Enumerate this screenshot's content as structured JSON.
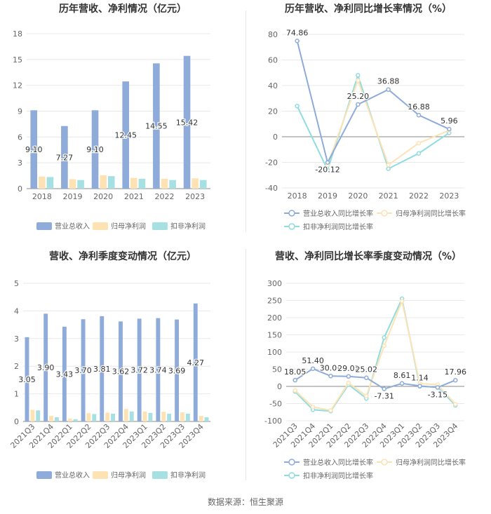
{
  "source": "数据来源：恒生聚源",
  "colors": {
    "revenue": "#8eabd9",
    "parent_profit": "#fde3b4",
    "deducted_profit": "#a6e0e2",
    "revenue_line": "#8eabd9",
    "parent_line": "#fde3b4",
    "deducted_line": "#90dcdf",
    "grid": "#e8e8e8",
    "axis": "#888888",
    "text": "#666666",
    "title": "#333333",
    "label": "#333333"
  },
  "chart_data": [
    {
      "id": "annual_amount",
      "type": "bar",
      "title": "历年营收、净利情况（亿元）",
      "categories": [
        "2018",
        "2019",
        "2020",
        "2021",
        "2022",
        "2023"
      ],
      "ylim": [
        0,
        18
      ],
      "yticks": [
        0,
        3,
        6,
        9,
        12,
        15,
        18
      ],
      "series": [
        {
          "name": "营业总收入",
          "values": [
            9.1,
            7.27,
            9.1,
            12.45,
            14.55,
            15.42
          ],
          "labels": [
            "9.10",
            "7.27",
            "9.10",
            "12.45",
            "14.55",
            "15.42"
          ]
        },
        {
          "name": "归母净利润",
          "values": [
            1.4,
            1.1,
            1.55,
            1.25,
            1.15,
            1.2
          ]
        },
        {
          "name": "扣非净利润",
          "values": [
            1.35,
            1.0,
            1.45,
            1.15,
            1.0,
            1.0
          ]
        }
      ]
    },
    {
      "id": "annual_growth",
      "type": "line",
      "title": "历年营收、净利同比增长率情况（%）",
      "categories": [
        "2018",
        "2019",
        "2020",
        "2021",
        "2022",
        "2023"
      ],
      "ylim": [
        -40,
        80
      ],
      "yticks": [
        -40,
        -20,
        0,
        20,
        40,
        60,
        80
      ],
      "series": [
        {
          "name": "营业总收入同比增长率",
          "values": [
            74.86,
            -20.12,
            25.2,
            36.88,
            16.88,
            5.96
          ],
          "labels": [
            "74.86",
            "-20.12",
            "25.20",
            "36.88",
            "16.88",
            "5.96"
          ]
        },
        {
          "name": "归母净利润同比增长率",
          "values": [
            null,
            -22,
            44,
            -22,
            -5,
            5
          ]
        },
        {
          "name": "扣非净利润同比增长率",
          "values": [
            24,
            -26,
            48,
            -25,
            -13,
            3
          ]
        }
      ]
    },
    {
      "id": "quarterly_amount",
      "type": "bar",
      "title": "营收、净利季度变动情况（亿元）",
      "categories": [
        "2021Q3",
        "2021Q4",
        "2022Q1",
        "2022Q2",
        "2022Q3",
        "2022Q4",
        "2023Q1",
        "2023Q2",
        "2023Q3",
        "2023Q4"
      ],
      "ylim": [
        0,
        5
      ],
      "yticks": [
        0,
        1,
        2,
        3,
        4,
        5
      ],
      "series": [
        {
          "name": "营业总收入",
          "values": [
            3.05,
            3.9,
            3.43,
            3.7,
            3.81,
            3.62,
            3.72,
            3.74,
            3.69,
            4.27
          ],
          "labels": [
            "3.05",
            "3.90",
            "3.43",
            "3.70",
            "3.81",
            "3.62",
            "3.72",
            "3.74",
            "3.69",
            "4.27"
          ]
        },
        {
          "name": "归母净利润",
          "values": [
            0.42,
            0.2,
            0.1,
            0.3,
            0.32,
            0.45,
            0.36,
            0.35,
            0.33,
            0.2
          ]
        },
        {
          "name": "扣非净利润",
          "values": [
            0.4,
            0.15,
            0.08,
            0.27,
            0.28,
            0.36,
            0.31,
            0.28,
            0.28,
            0.15
          ]
        }
      ]
    },
    {
      "id": "quarterly_growth",
      "type": "line",
      "title": "营收、净利同比增长率季度变动情况（%）",
      "categories": [
        "2021Q3",
        "2021Q4",
        "2022Q1",
        "2022Q2",
        "2022Q3",
        "2022Q4",
        "2023Q1",
        "2023Q2",
        "2023Q3",
        "2023Q4"
      ],
      "ylim": [
        -100,
        300
      ],
      "yticks": [
        -100,
        -50,
        0,
        50,
        100,
        150,
        200,
        250,
        300
      ],
      "series": [
        {
          "name": "营业总收入同比增长率",
          "values": [
            18.05,
            51.4,
            30.09,
            29.02,
            25.02,
            -7.31,
            8.61,
            1.14,
            -3.15,
            17.96
          ],
          "labels": [
            "18.05",
            "51.40",
            "30.09",
            "29.02",
            "25.02",
            "-7.31",
            "8.61",
            "1.14",
            "-3.15",
            "17.96"
          ]
        },
        {
          "name": "归母净利润同比增长率",
          "values": [
            -12,
            -60,
            -70,
            10,
            -28,
            118,
            248,
            8,
            5,
            -52
          ]
        },
        {
          "name": "扣非净利润同比增长率",
          "values": [
            -15,
            -68,
            -72,
            5,
            -35,
            142,
            255,
            0,
            -2,
            -55
          ]
        }
      ]
    }
  ]
}
